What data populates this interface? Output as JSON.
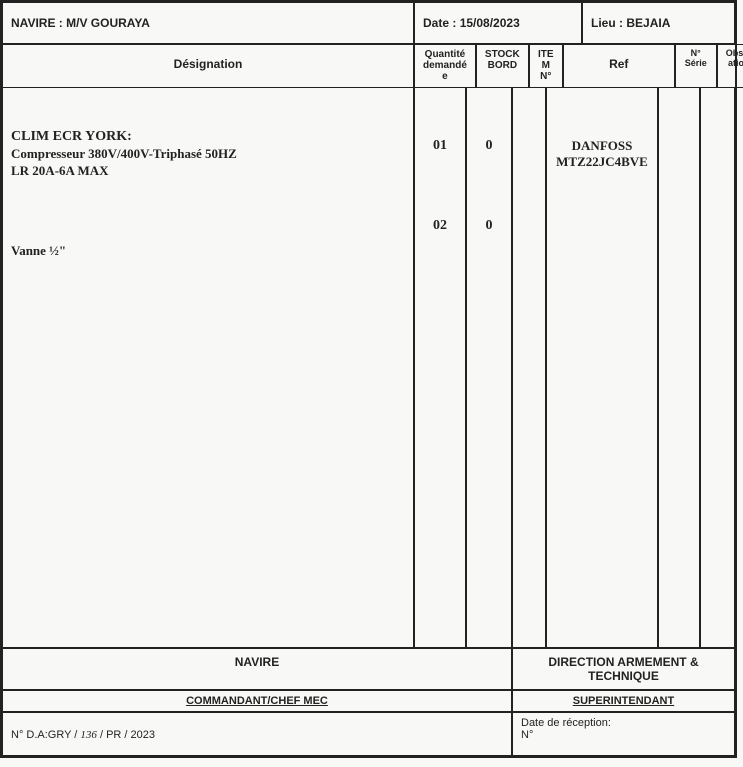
{
  "header": {
    "navire_label": "NAVIRE :",
    "navire_value": "M/V GOURAYA",
    "date_label": "Date :",
    "date_value": "15/08/2023",
    "lieu_label": "Lieu :",
    "lieu_value": "BEJAIA"
  },
  "columns": {
    "design": "Désignation",
    "qte_l1": "Quantité",
    "qte_l2": "demandé",
    "qte_l3": "e",
    "stock_l1": "STOCK",
    "stock_l2": "BORD",
    "item_l1": "ITE",
    "item_l2": "M N°",
    "ref": "Ref",
    "serie": "N° Série",
    "obs_l1": "Observ",
    "obs_l2": "ations"
  },
  "rows": {
    "r1": {
      "title": "CLIM ECR YORK:",
      "line2": "Compresseur 380V/400V-Triphasé 50HZ",
      "line3": "LR 20A-6A MAX",
      "qte": "01",
      "stock": "0",
      "ref_l1": "DANFOSS",
      "ref_l2": "MTZ22JC4BVE"
    },
    "r2": {
      "title": "Vanne ½\"",
      "qte": "02",
      "stock": "0"
    }
  },
  "footer": {
    "navire_header": "NAVIRE",
    "direction_header": "DIRECTION ARMEMENT & TECHNIQUE",
    "commandant": "COMMANDANT/CHEF MEC",
    "superintendant": "SUPERINTENDANT",
    "da_prefix": "N° D.A:GRY /",
    "da_num": "136",
    "da_suffix": "/    PR / 2023",
    "reception_label": "Date de réception:",
    "reception_num_label": "N°"
  },
  "colors": {
    "border": "#222222",
    "bg": "#f8f8f6",
    "text": "#222222"
  }
}
